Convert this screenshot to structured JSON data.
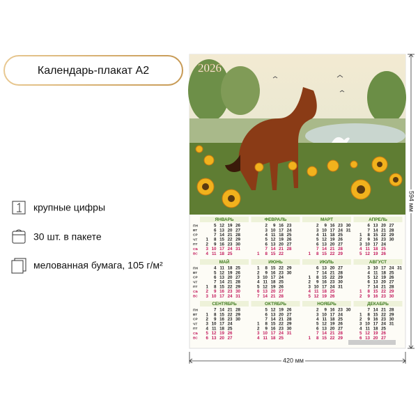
{
  "header": {
    "title": "Календарь-плакат А2"
  },
  "features": [
    {
      "text": "крупные цифры"
    },
    {
      "text": "30 шт. в пакете"
    },
    {
      "text": "мелованная бумага, 105 г/м²"
    }
  ],
  "dimensions": {
    "width": "420 мм",
    "height": "594 мм"
  },
  "poster": {
    "year": "2026",
    "weekdays": [
      "ПН",
      "ВТ",
      "СР",
      "ЧТ",
      "ПТ",
      "СБ",
      "ВС"
    ],
    "months": [
      {
        "name": "ЯНВАРЬ",
        "rows": [
          [
            null,
            5,
            12,
            19,
            26
          ],
          [
            null,
            6,
            13,
            20,
            27
          ],
          [
            null,
            7,
            14,
            21,
            28
          ],
          [
            1,
            8,
            15,
            22,
            29
          ],
          [
            2,
            9,
            16,
            23,
            30
          ],
          [
            3,
            10,
            17,
            24,
            31
          ],
          [
            4,
            11,
            18,
            25,
            null
          ]
        ]
      },
      {
        "name": "ФЕВРАЛЬ",
        "rows": [
          [
            null,
            2,
            9,
            16,
            23
          ],
          [
            null,
            3,
            10,
            17,
            24
          ],
          [
            null,
            4,
            11,
            18,
            25
          ],
          [
            null,
            5,
            12,
            19,
            26
          ],
          [
            null,
            6,
            13,
            20,
            27
          ],
          [
            null,
            7,
            14,
            21,
            28
          ],
          [
            1,
            8,
            15,
            22,
            null
          ]
        ]
      },
      {
        "name": "МАРТ",
        "rows": [
          [
            null,
            2,
            9,
            16,
            23,
            30
          ],
          [
            null,
            3,
            10,
            17,
            24,
            31
          ],
          [
            null,
            4,
            11,
            18,
            25,
            null
          ],
          [
            null,
            5,
            12,
            19,
            26,
            null
          ],
          [
            null,
            6,
            13,
            20,
            27,
            null
          ],
          [
            null,
            7,
            14,
            21,
            28,
            null
          ],
          [
            1,
            8,
            15,
            22,
            29,
            null
          ]
        ]
      },
      {
        "name": "АПРЕЛЬ",
        "rows": [
          [
            null,
            6,
            13,
            20,
            27
          ],
          [
            null,
            7,
            14,
            21,
            28
          ],
          [
            1,
            8,
            15,
            22,
            29
          ],
          [
            2,
            9,
            16,
            23,
            30
          ],
          [
            3,
            10,
            17,
            24,
            null
          ],
          [
            4,
            11,
            18,
            25,
            null
          ],
          [
            5,
            12,
            19,
            26,
            null
          ]
        ]
      },
      {
        "name": "МАЙ",
        "rows": [
          [
            null,
            4,
            11,
            18,
            25
          ],
          [
            null,
            5,
            12,
            19,
            26
          ],
          [
            null,
            6,
            13,
            20,
            27
          ],
          [
            null,
            7,
            14,
            21,
            28
          ],
          [
            1,
            8,
            15,
            22,
            29
          ],
          [
            2,
            9,
            16,
            23,
            30
          ],
          [
            3,
            10,
            17,
            24,
            31
          ]
        ]
      },
      {
        "name": "ИЮНЬ",
        "rows": [
          [
            1,
            8,
            15,
            22,
            29
          ],
          [
            2,
            9,
            16,
            23,
            30
          ],
          [
            3,
            10,
            17,
            24,
            null
          ],
          [
            4,
            11,
            18,
            25,
            null
          ],
          [
            5,
            12,
            19,
            26,
            null
          ],
          [
            6,
            13,
            20,
            27,
            null
          ],
          [
            7,
            14,
            21,
            28,
            null
          ]
        ]
      },
      {
        "name": "ИЮЛЬ",
        "rows": [
          [
            null,
            6,
            13,
            20,
            27
          ],
          [
            null,
            7,
            14,
            21,
            28
          ],
          [
            1,
            8,
            15,
            22,
            29
          ],
          [
            2,
            9,
            16,
            23,
            30
          ],
          [
            3,
            10,
            17,
            24,
            31
          ],
          [
            4,
            11,
            18,
            25,
            null
          ],
          [
            5,
            12,
            19,
            26,
            null
          ]
        ]
      },
      {
        "name": "АВГУСТ",
        "rows": [
          [
            null,
            3,
            10,
            17,
            24,
            31
          ],
          [
            null,
            4,
            11,
            18,
            25,
            null
          ],
          [
            null,
            5,
            12,
            19,
            26,
            null
          ],
          [
            null,
            6,
            13,
            20,
            27,
            null
          ],
          [
            null,
            7,
            14,
            21,
            28,
            null
          ],
          [
            1,
            8,
            15,
            22,
            29,
            null
          ],
          [
            2,
            9,
            16,
            23,
            30,
            null
          ]
        ]
      },
      {
        "name": "СЕНТЯБРЬ",
        "rows": [
          [
            null,
            7,
            14,
            21,
            28
          ],
          [
            1,
            8,
            15,
            22,
            29
          ],
          [
            2,
            9,
            16,
            23,
            30
          ],
          [
            3,
            10,
            17,
            24,
            null
          ],
          [
            4,
            11,
            18,
            25,
            null
          ],
          [
            5,
            12,
            19,
            26,
            null
          ],
          [
            6,
            13,
            20,
            27,
            null
          ]
        ]
      },
      {
        "name": "ОКТЯБРЬ",
        "rows": [
          [
            null,
            5,
            12,
            19,
            26
          ],
          [
            null,
            6,
            13,
            20,
            27
          ],
          [
            null,
            7,
            14,
            21,
            28
          ],
          [
            1,
            8,
            15,
            22,
            29
          ],
          [
            2,
            9,
            16,
            23,
            30
          ],
          [
            3,
            10,
            17,
            24,
            31
          ],
          [
            4,
            11,
            18,
            25,
            null
          ]
        ]
      },
      {
        "name": "НОЯБРЬ",
        "rows": [
          [
            null,
            2,
            9,
            16,
            23,
            30
          ],
          [
            null,
            3,
            10,
            17,
            24,
            null
          ],
          [
            null,
            4,
            11,
            18,
            25,
            null
          ],
          [
            null,
            5,
            12,
            19,
            26,
            null
          ],
          [
            null,
            6,
            13,
            20,
            27,
            null
          ],
          [
            null,
            7,
            14,
            21,
            28,
            null
          ],
          [
            1,
            8,
            15,
            22,
            29,
            null
          ]
        ]
      },
      {
        "name": "ДЕКАБРЬ",
        "rows": [
          [
            null,
            7,
            14,
            21,
            28
          ],
          [
            1,
            8,
            15,
            22,
            29
          ],
          [
            2,
            9,
            16,
            23,
            30
          ],
          [
            3,
            10,
            17,
            24,
            31
          ],
          [
            4,
            11,
            18,
            25,
            null
          ],
          [
            5,
            12,
            19,
            26,
            null
          ],
          [
            6,
            13,
            20,
            27,
            null
          ]
        ]
      }
    ]
  }
}
